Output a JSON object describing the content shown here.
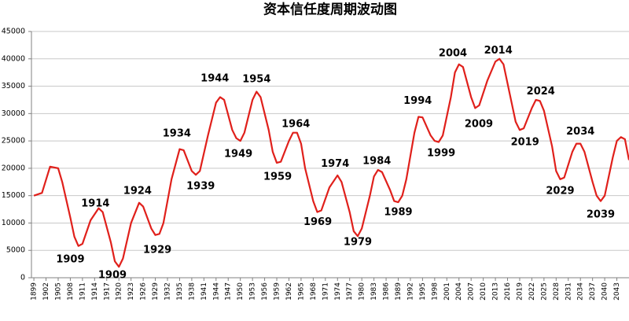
{
  "chart_data": {
    "type": "line",
    "title": "资本信任度周期波动图",
    "x": [
      1899,
      1901,
      1903,
      1905,
      1906,
      1908,
      1909,
      1910,
      1911,
      1913,
      1915,
      1916,
      1918,
      1919,
      1920,
      1921,
      1923,
      1925,
      1926,
      1928,
      1929,
      1930,
      1931,
      1933,
      1935,
      1936,
      1938,
      1939,
      1940,
      1942,
      1944,
      1945,
      1946,
      1948,
      1949,
      1950,
      1951,
      1953,
      1954,
      1955,
      1957,
      1958,
      1959,
      1960,
      1962,
      1963,
      1964,
      1965,
      1966,
      1968,
      1969,
      1970,
      1972,
      1974,
      1975,
      1977,
      1978,
      1979,
      1980,
      1982,
      1983,
      1984,
      1985,
      1987,
      1988,
      1989,
      1990,
      1991,
      1993,
      1994,
      1995,
      1997,
      1998,
      1999,
      2000,
      2002,
      2003,
      2004,
      2005,
      2007,
      2008,
      2009,
      2011,
      2013,
      2014,
      2015,
      2017,
      2018,
      2019,
      2020,
      2022,
      2023,
      2024,
      2025,
      2027,
      2028,
      2029,
      2030,
      2032,
      2033,
      2034,
      2035,
      2037,
      2038,
      2039,
      2040,
      2042,
      2043,
      2044,
      2045,
      2046
    ],
    "series": [
      {
        "name": "资本信任度",
        "color": "#e0201b",
        "values": [
          15000,
          15500,
          20300,
          20000,
          17500,
          11000,
          7500,
          5800,
          6200,
          10500,
          12700,
          12000,
          6500,
          3000,
          2000,
          3500,
          10000,
          13700,
          13000,
          9000,
          7800,
          8000,
          10000,
          18000,
          23500,
          23300,
          19500,
          18800,
          19500,
          26000,
          32000,
          33000,
          32500,
          27000,
          25500,
          25000,
          26500,
          32500,
          34000,
          33000,
          27000,
          23000,
          21000,
          21200,
          25000,
          26500,
          26500,
          24500,
          20000,
          14000,
          12000,
          12300,
          16500,
          18700,
          17500,
          12000,
          8500,
          7600,
          9000,
          15000,
          18500,
          19700,
          19300,
          16000,
          14000,
          13800,
          15000,
          18000,
          26500,
          29400,
          29300,
          26000,
          25000,
          24800,
          26000,
          33000,
          37500,
          39000,
          38500,
          33000,
          31000,
          31500,
          36000,
          39500,
          40000,
          39000,
          32000,
          28500,
          27000,
          27300,
          31000,
          32500,
          32300,
          30500,
          24000,
          19500,
          18000,
          18300,
          23000,
          24500,
          24500,
          23000,
          17500,
          15000,
          14000,
          15000,
          22000,
          25000,
          25700,
          25300,
          21500
        ]
      }
    ],
    "xlim": [
      1898.4,
      2046
    ],
    "xticks": [
      1899,
      1902,
      1905,
      1908,
      1911,
      1914,
      1917,
      1920,
      1923,
      1926,
      1929,
      1932,
      1935,
      1938,
      1941,
      1944,
      1947,
      1950,
      1953,
      1956,
      1959,
      1962,
      1965,
      1968,
      1971,
      1974,
      1977,
      1980,
      1983,
      1986,
      1989,
      1992,
      1995,
      1998,
      2001,
      2004,
      2007,
      2010,
      2013,
      2016,
      2019,
      2022,
      2025,
      2028,
      2031,
      2034,
      2037,
      2040,
      2043
    ],
    "ylim": [
      0,
      45000
    ],
    "yticks": [
      0,
      5000,
      10000,
      15000,
      20000,
      25000,
      30000,
      35000,
      40000,
      45000
    ],
    "grid": true,
    "annotations": [
      {
        "text": "1909",
        "x": 1908,
        "y": 3300
      },
      {
        "text": "1914",
        "x": 1914.2,
        "y": 13500
      },
      {
        "text": "1909",
        "x": 1918.4,
        "y": 400
      },
      {
        "text": "1924",
        "x": 1924.6,
        "y": 15800
      },
      {
        "text": "1929",
        "x": 1929.5,
        "y": 5000
      },
      {
        "text": "1934",
        "x": 1934.3,
        "y": 26300
      },
      {
        "text": "1939",
        "x": 1940.2,
        "y": 16700
      },
      {
        "text": "1944",
        "x": 1943.7,
        "y": 36400
      },
      {
        "text": "1949",
        "x": 1949.5,
        "y": 22600
      },
      {
        "text": "1954",
        "x": 1954,
        "y": 36200
      },
      {
        "text": "1959",
        "x": 1959.2,
        "y": 18400
      },
      {
        "text": "1964",
        "x": 1963.7,
        "y": 28000
      },
      {
        "text": "1969",
        "x": 1969.1,
        "y": 10100
      },
      {
        "text": "1974",
        "x": 1973.4,
        "y": 20800
      },
      {
        "text": "1979",
        "x": 1979,
        "y": 6500
      },
      {
        "text": "1984",
        "x": 1983.7,
        "y": 21300
      },
      {
        "text": "1989",
        "x": 1989,
        "y": 11900
      },
      {
        "text": "1994",
        "x": 1993.8,
        "y": 32300
      },
      {
        "text": "1999",
        "x": 1999.6,
        "y": 22700
      },
      {
        "text": "2004",
        "x": 2002.5,
        "y": 41000
      },
      {
        "text": "2009",
        "x": 2008.9,
        "y": 28000
      },
      {
        "text": "2014",
        "x": 2013.7,
        "y": 41500
      },
      {
        "text": "2019",
        "x": 2020.3,
        "y": 24700
      },
      {
        "text": "2024",
        "x": 2024.2,
        "y": 34000
      },
      {
        "text": "2029",
        "x": 2029,
        "y": 15800
      },
      {
        "text": "2034",
        "x": 2034,
        "y": 26700
      },
      {
        "text": "2039",
        "x": 2039,
        "y": 11500
      }
    ]
  }
}
